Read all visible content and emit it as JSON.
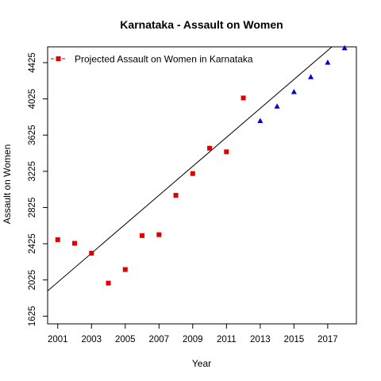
{
  "chart_data": {
    "type": "scatter",
    "title": "Karnataka  -  Assault on Women",
    "xlabel": "Year",
    "ylabel": "Assault on Women",
    "xlim": [
      2000.4,
      2018.7
    ],
    "ylim": [
      1540,
      4600
    ],
    "x_ticks": [
      2001,
      2003,
      2005,
      2007,
      2009,
      2011,
      2013,
      2015,
      2017
    ],
    "x_tick_labels": [
      "2001",
      "2003",
      "2005",
      "2007",
      "2009",
      "2011",
      "2013",
      "2015",
      "2017"
    ],
    "y_ticks": [
      1625,
      2025,
      2425,
      2825,
      3225,
      3625,
      4025,
      4425
    ],
    "y_tick_labels": [
      "1625",
      "2025",
      "2425",
      "2825",
      "3225",
      "3625",
      "4025",
      "4425"
    ],
    "grid": false,
    "legend": {
      "position": "top-left",
      "entries": [
        {
          "label": "Projected  Assault on Women  in  Karnataka",
          "color": "#e00000",
          "marker": "square"
        }
      ]
    },
    "series": [
      {
        "marker": "square",
        "color": "#e00000",
        "points": [
          {
            "x": 2001,
            "y": 2470
          },
          {
            "x": 2002,
            "y": 2430
          },
          {
            "x": 2003,
            "y": 2320
          },
          {
            "x": 2004,
            "y": 1990
          },
          {
            "x": 2005,
            "y": 2140
          },
          {
            "x": 2006,
            "y": 2515
          },
          {
            "x": 2007,
            "y": 2525
          },
          {
            "x": 2008,
            "y": 2960
          },
          {
            "x": 2009,
            "y": 3200
          },
          {
            "x": 2010,
            "y": 3480
          },
          {
            "x": 2011,
            "y": 3440
          },
          {
            "x": 2012,
            "y": 4035
          }
        ]
      },
      {
        "marker": "triangle",
        "color": "#0000cc",
        "points": [
          {
            "x": 2013,
            "y": 3780
          },
          {
            "x": 2014,
            "y": 3940
          },
          {
            "x": 2015,
            "y": 4100
          },
          {
            "x": 2016,
            "y": 4265
          },
          {
            "x": 2017,
            "y": 4425
          },
          {
            "x": 2018,
            "y": 4585
          }
        ]
      }
    ],
    "trend_line": {
      "color": "#000000",
      "intercept_at_2001": 2000,
      "slope_per_year": 160
    }
  }
}
